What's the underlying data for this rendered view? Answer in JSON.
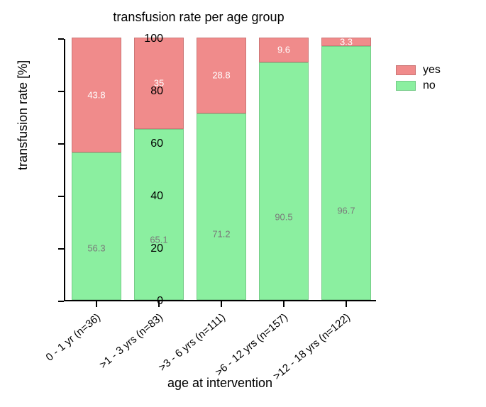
{
  "chart": {
    "type": "stacked-bar-100",
    "title": "transfusion rate per age group",
    "ylabel": "transfusion rate [%]",
    "xlabel": "age at intervention",
    "ylim": [
      0,
      100
    ],
    "yticks": [
      0,
      20,
      40,
      60,
      80,
      100
    ],
    "background_color": "#ffffff",
    "axis_color": "#000000",
    "bar_width_ratio": 0.8,
    "categories": [
      "0 - 1 yr (n=36)",
      ">1 - 3 yrs (n=83)",
      ">3 - 6 yrs (n=111)",
      ">6 - 12 yrs (n=157)",
      ">12 - 18 yrs (n=122)"
    ],
    "series": {
      "no": {
        "color": "#8befa0",
        "label": "no",
        "value_text_color": "#7a7a7a",
        "values": [
          56.3,
          65.1,
          71.2,
          90.5,
          96.7
        ]
      },
      "yes": {
        "color": "#f08b8b",
        "label": "yes",
        "value_text_color": "#ffffff",
        "values": [
          43.8,
          35.0,
          28.8,
          9.6,
          3.3
        ]
      }
    },
    "stack_order": [
      "no",
      "yes"
    ],
    "legend_order": [
      "yes",
      "no"
    ],
    "x_tick_rotation_deg": -40,
    "title_fontsize": 18,
    "axis_label_fontsize": 18,
    "tick_fontsize": 16,
    "value_label_fontsize": 13
  }
}
